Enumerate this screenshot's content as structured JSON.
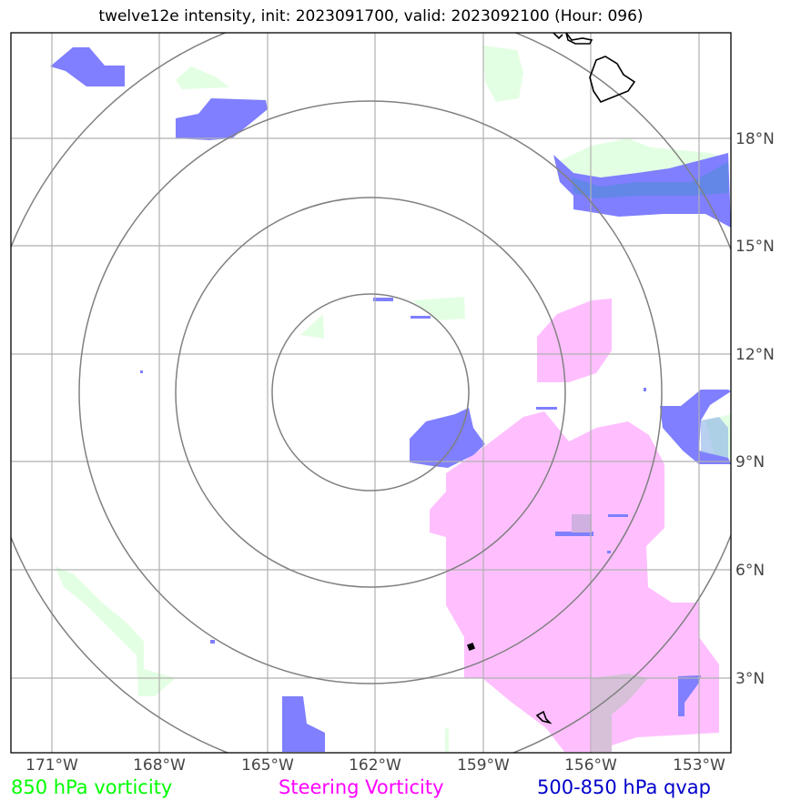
{
  "title": "twelve12e intensity, init: 2023091700, valid: 2023092100 (Hour: 096)",
  "legend": {
    "green_label": "850 hPa vorticity",
    "magenta_label": "Steering Vorticity",
    "blue_label": "500-850 hPa qvap",
    "green_color": "#00ff00",
    "magenta_color": "#ff00ff",
    "blue_color": "#0000cc"
  },
  "axes": {
    "lon_labels": [
      "171°W",
      "168°W",
      "165°W",
      "162°W",
      "159°W",
      "156°W",
      "153°W"
    ],
    "lat_labels": [
      "18°N",
      "15°N",
      "12°N",
      "9°N",
      "6°N",
      "3°N"
    ]
  },
  "fill_colors": {
    "vorticity_850": "#e3ffe3",
    "steering_vorticity": "#ffbfff",
    "qvap": "#7f7fff",
    "coastline": "#000000",
    "range_rings": "#808080",
    "gridlines": "#b0b0b0"
  }
}
